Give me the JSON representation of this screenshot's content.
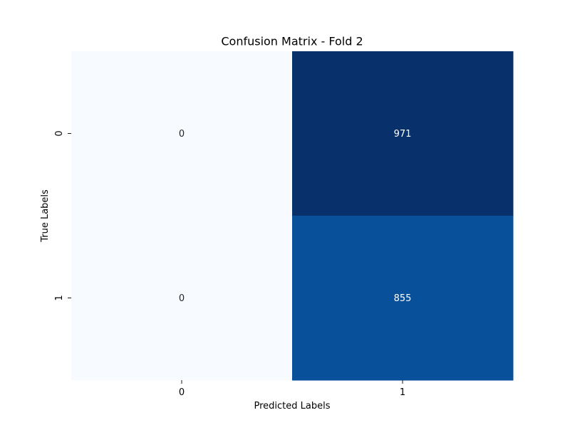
{
  "chart_data": {
    "type": "heatmap",
    "title": "Confusion Matrix - Fold 2",
    "xlabel": "Predicted Labels",
    "ylabel": "True Labels",
    "x_categories": [
      "0",
      "1"
    ],
    "y_categories": [
      "0",
      "1"
    ],
    "values": [
      [
        0,
        971
      ],
      [
        0,
        855
      ]
    ],
    "colormap": "Blues",
    "value_range": [
      0,
      971
    ],
    "colorbar": false,
    "annotations": true,
    "colors": {
      "low": "#f7fbff",
      "high": "#08306b",
      "text_dark": "#262626",
      "text_light": "#ffffff"
    }
  }
}
